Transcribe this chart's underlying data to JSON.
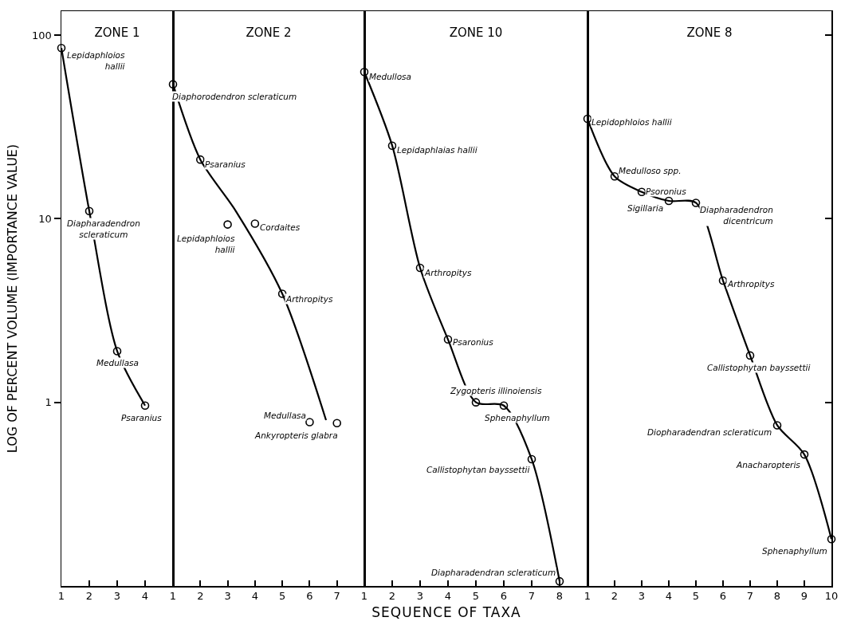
{
  "chart_data": [
    {
      "type": "line",
      "title": "ZONE 1",
      "ylabel": "LOG OF PERCENT VOLUME (IMPORTANCE VALUE)",
      "log": "y",
      "marker": "circle",
      "line_style": "solid",
      "grid": false,
      "xlim": [
        1,
        5
      ],
      "xticks": [
        1,
        2,
        3,
        4
      ],
      "ylim": [
        0.1,
        135
      ],
      "yticks": [
        {
          "value": 100,
          "label": "100"
        },
        {
          "value": 10,
          "label": "10"
        },
        {
          "value": 1,
          "label": "1"
        }
      ],
      "x": [
        1,
        2,
        3,
        4
      ],
      "series": [
        {
          "color": "#000000",
          "values": [
            85,
            11,
            1.9,
            0.96
          ]
        }
      ],
      "annotations": [
        {
          "text": "Lepidaphloios hallii",
          "x": 1,
          "y": 85
        },
        {
          "text": "Diapharadendron scleraticum",
          "x": 2,
          "y": 11
        },
        {
          "text": "Medullasa",
          "x": 3,
          "y": 1.9
        },
        {
          "text": "Psaranius",
          "x": 4,
          "y": 0.96
        }
      ]
    },
    {
      "type": "scatter",
      "title": "ZONE 2",
      "log": "y",
      "marker": "circle",
      "line_style": "solid",
      "grid": false,
      "tick_labels": "x",
      "xlim": [
        1,
        8
      ],
      "xticks": [
        1,
        2,
        3,
        4,
        5,
        6,
        7
      ],
      "ylim": [
        0.1,
        135
      ],
      "yticks": [
        {
          "value": 100,
          "label": null
        },
        {
          "value": 10,
          "label": null
        },
        {
          "value": 1,
          "label": null
        }
      ],
      "x": [
        1,
        2,
        3,
        4,
        5,
        6,
        7
      ],
      "series": [
        {
          "color": "#000000",
          "values": [
            54,
            21,
            9.3,
            9.4,
            3.9,
            0.78,
            0.77
          ]
        },
        {
          "type": "line",
          "marker": "none",
          "color": "#000000",
          "x": [
            1,
            2,
            3.3,
            5,
            6.6
          ],
          "values": [
            54,
            21,
            11,
            3.9,
            0.8
          ]
        }
      ],
      "annotations": [
        {
          "text": "Diaphorodendron scleraticum",
          "x": 1,
          "y": 54
        },
        {
          "text": "Psaranius",
          "x": 2,
          "y": 21
        },
        {
          "text": "Lepidaphloios hallii",
          "x": 3,
          "y": 9.3
        },
        {
          "text": "Cordaites",
          "x": 4,
          "y": 9.4
        },
        {
          "text": "Arthropitys",
          "x": 5,
          "y": 3.9
        },
        {
          "text": "Medullasa",
          "x": 6,
          "y": 0.78
        },
        {
          "text": "Ankyropteris glabra",
          "x": 7,
          "y": 0.77
        }
      ]
    },
    {
      "type": "line",
      "title": "ZONE 10",
      "xlabel": "SEQUENCE OF TAXA",
      "log": "y",
      "marker": "circle",
      "line_style": "solid",
      "grid": false,
      "tick_labels": "x",
      "xlim": [
        1,
        9
      ],
      "xticks": [
        1,
        2,
        3,
        4,
        5,
        6,
        7,
        8
      ],
      "ylim": [
        0.1,
        135
      ],
      "yticks": [
        {
          "value": 100,
          "label": null
        },
        {
          "value": 10,
          "label": null
        },
        {
          "value": 1,
          "label": null
        }
      ],
      "x": [
        1,
        2,
        3,
        4,
        5,
        6,
        7,
        8
      ],
      "series": [
        {
          "color": "#000000",
          "values": [
            63,
            25,
            5.4,
            2.2,
            1.0,
            0.96,
            0.49,
            0.106
          ]
        }
      ],
      "annotations": [
        {
          "text": "Medullosa",
          "x": 1,
          "y": 63
        },
        {
          "text": "Lepidaphlaias hallii",
          "x": 2,
          "y": 25
        },
        {
          "text": "Arthropitys",
          "x": 3,
          "y": 5.4
        },
        {
          "text": "Psaronius",
          "x": 4,
          "y": 2.2
        },
        {
          "text": "Zygopteris illinoiensis",
          "x": 5,
          "y": 1.0
        },
        {
          "text": "Sphenaphyllum",
          "x": 6,
          "y": 0.96
        },
        {
          "text": "Callistophytan bayssettii",
          "x": 7,
          "y": 0.49
        },
        {
          "text": "Diapharadendran scleraticum",
          "x": 8,
          "y": 0.106
        }
      ]
    },
    {
      "type": "line",
      "title": "ZONE 8",
      "log": "y",
      "marker": "circle",
      "line_style": "solid",
      "grid": false,
      "tick_labels": "x",
      "xlim": [
        1,
        10
      ],
      "xticks": [
        1,
        2,
        3,
        4,
        5,
        6,
        7,
        8,
        9,
        10
      ],
      "ylim": [
        0.1,
        135
      ],
      "yticks": [
        {
          "value": 100,
          "label": null
        },
        {
          "value": 10,
          "label": null
        },
        {
          "value": 1,
          "label": null
        }
      ],
      "x": [
        1,
        2,
        3,
        4,
        5,
        6,
        7,
        8,
        9,
        10
      ],
      "series": [
        {
          "color": "#000000",
          "values": [
            35,
            17,
            14,
            12.5,
            12.2,
            4.6,
            1.8,
            0.75,
            0.52,
            0.18
          ]
        }
      ],
      "annotations": [
        {
          "text": "Lepidophloios hallii",
          "x": 1,
          "y": 35
        },
        {
          "text": "Medulloso spp.",
          "x": 2,
          "y": 17
        },
        {
          "text": "Psoronius",
          "x": 3,
          "y": 14
        },
        {
          "text": "Sigillaria",
          "x": 4,
          "y": 12.5
        },
        {
          "text": "Diapharadendron dicentricum",
          "x": 5,
          "y": 12.2
        },
        {
          "text": "Arthropitys",
          "x": 6,
          "y": 4.6
        },
        {
          "text": "Callistophytan bayssettii",
          "x": 7,
          "y": 1.8
        },
        {
          "text": "Diopharadendran scleraticum",
          "x": 8,
          "y": 0.75
        },
        {
          "text": "Anacharopteris",
          "x": 9,
          "y": 0.52
        },
        {
          "text": "Sphenaphyllum",
          "x": 10,
          "y": 0.18
        }
      ]
    }
  ]
}
